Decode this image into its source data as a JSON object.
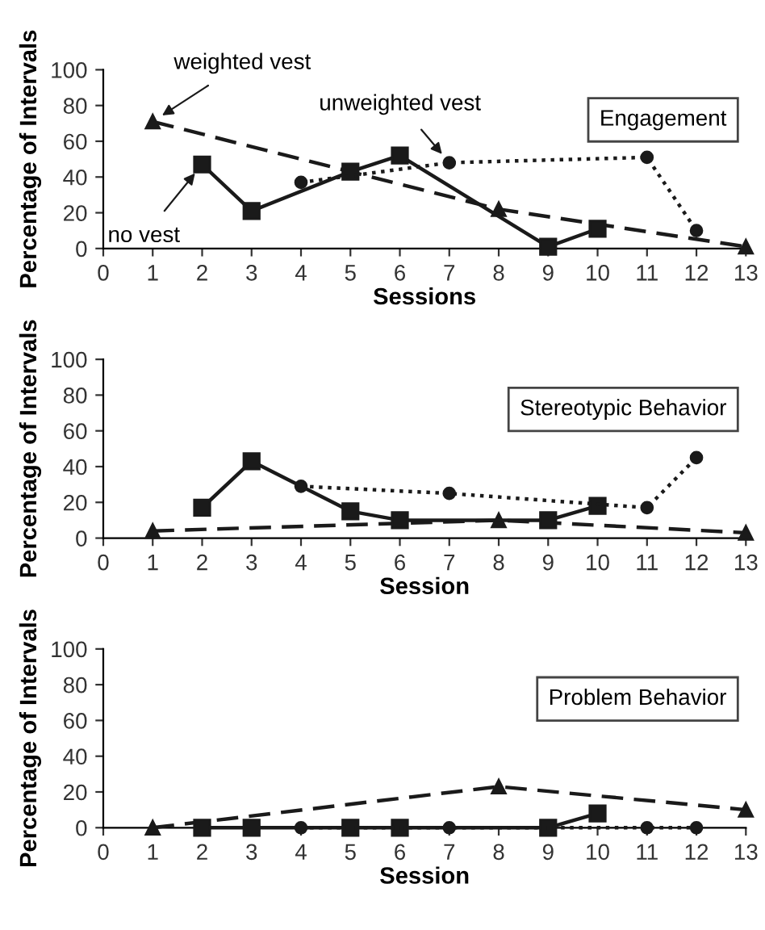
{
  "chart_data": [
    {
      "type": "line",
      "title": "Engagement",
      "xlabel": "Sessions",
      "ylabel": "Percentage of Intervals",
      "xlim": [
        0,
        13
      ],
      "xticks": [
        0,
        1,
        2,
        3,
        4,
        5,
        6,
        7,
        8,
        9,
        10,
        11,
        12,
        13
      ],
      "ylim": [
        0,
        100
      ],
      "yticks": [
        0,
        20,
        40,
        60,
        80,
        100
      ],
      "grid": false,
      "legend": false,
      "annotations": [
        {
          "text": "weighted vest",
          "x": 1,
          "y": 71
        },
        {
          "text": "unweighted vest",
          "x": 7,
          "y": 48
        },
        {
          "text": "no vest",
          "x": 2,
          "y": 47
        }
      ],
      "series": [
        {
          "color": "#1a1a1a",
          "marker": "triangle",
          "line_style": "dashed",
          "x": [
            1,
            8,
            13
          ],
          "values": [
            71,
            22,
            1
          ]
        },
        {
          "color": "#1a1a1a",
          "marker": "square",
          "line_style": "solid",
          "x": [
            2,
            3,
            5,
            6,
            9,
            10
          ],
          "values": [
            47,
            21,
            43,
            52,
            1,
            11
          ]
        },
        {
          "color": "#1a1a1a",
          "marker": "circle",
          "line_style": "dotted",
          "x": [
            4,
            7,
            11,
            12
          ],
          "values": [
            37,
            48,
            51,
            10
          ]
        }
      ]
    },
    {
      "type": "line",
      "title": "Stereotypic Behavior",
      "xlabel": "Session",
      "ylabel": "Percentage of Intervals",
      "xlim": [
        0,
        13
      ],
      "xticks": [
        0,
        1,
        2,
        3,
        4,
        5,
        6,
        7,
        8,
        9,
        10,
        11,
        12,
        13
      ],
      "ylim": [
        0,
        100
      ],
      "yticks": [
        0,
        20,
        40,
        60,
        80,
        100
      ],
      "grid": false,
      "legend": false,
      "series": [
        {
          "color": "#1a1a1a",
          "marker": "triangle",
          "line_style": "dashed",
          "x": [
            1,
            8,
            13
          ],
          "values": [
            4,
            10,
            3
          ]
        },
        {
          "color": "#1a1a1a",
          "marker": "square",
          "line_style": "solid",
          "x": [
            2,
            3,
            5,
            6,
            9,
            10
          ],
          "values": [
            17,
            43,
            15,
            10,
            10,
            18
          ]
        },
        {
          "color": "#1a1a1a",
          "marker": "circle",
          "line_style": "dotted",
          "x": [
            4,
            7,
            11,
            12
          ],
          "values": [
            29,
            25,
            17,
            45
          ]
        }
      ]
    },
    {
      "type": "line",
      "title": "Problem Behavior",
      "xlabel": "Session",
      "ylabel": "Percentage of Intervals",
      "xlim": [
        0,
        13
      ],
      "xticks": [
        0,
        1,
        2,
        3,
        4,
        5,
        6,
        7,
        8,
        9,
        10,
        11,
        12,
        13
      ],
      "ylim": [
        0,
        100
      ],
      "yticks": [
        0,
        20,
        40,
        60,
        80,
        100
      ],
      "grid": false,
      "legend": false,
      "series": [
        {
          "color": "#1a1a1a",
          "marker": "triangle",
          "line_style": "dashed",
          "x": [
            1,
            8,
            13
          ],
          "values": [
            0,
            23,
            10
          ]
        },
        {
          "color": "#1a1a1a",
          "marker": "square",
          "line_style": "solid",
          "x": [
            2,
            3,
            5,
            6,
            9,
            10
          ],
          "values": [
            0,
            0,
            0,
            0,
            0,
            8
          ]
        },
        {
          "color": "#1a1a1a",
          "marker": "circle",
          "line_style": "dotted",
          "x": [
            4,
            7,
            11,
            12
          ],
          "values": [
            0,
            0,
            0,
            0
          ]
        }
      ]
    }
  ]
}
